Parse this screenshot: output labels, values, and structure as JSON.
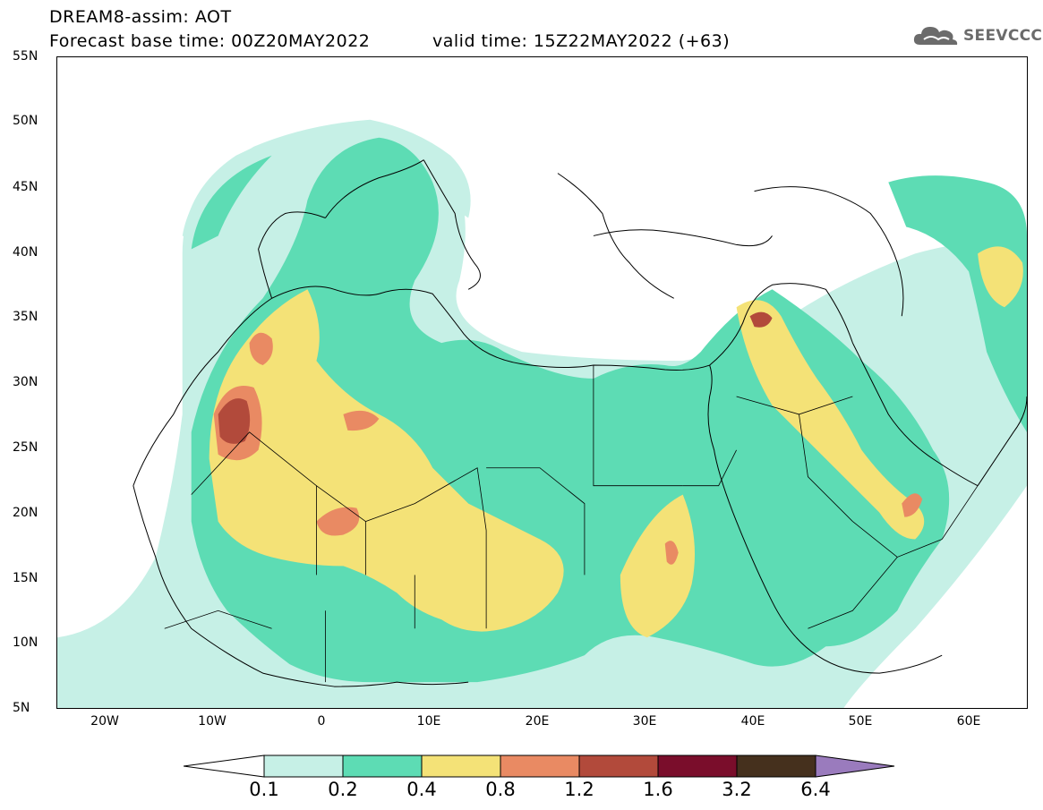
{
  "title": {
    "line1": "DREAM8-assim: AOT",
    "line2": "Forecast base time: 00Z20MAY2022",
    "valid": "valid time: 15Z22MAY2022 (+63)"
  },
  "logo": {
    "text": "SEEVCCC",
    "icon": "cloud-icon"
  },
  "map": {
    "lon_range": [
      -25,
      65
    ],
    "lat_range": [
      5,
      55
    ],
    "lat_labels": [
      "55N",
      "50N",
      "45N",
      "40N",
      "35N",
      "30N",
      "25N",
      "20N",
      "15N",
      "10N",
      "5N"
    ],
    "lon_labels": [
      "20W",
      "10W",
      "0",
      "10E",
      "20E",
      "30E",
      "40E",
      "50E",
      "60E"
    ]
  },
  "legend": {
    "labels": [
      "0.1",
      "0.2",
      "0.4",
      "0.8",
      "1.2",
      "1.6",
      "3.2",
      "6.4"
    ],
    "colors": [
      "#ffffff",
      "#c6f0e6",
      "#5ddcb4",
      "#f4e277",
      "#e98a63",
      "#b24a3b",
      "#7a0d2b",
      "#45301d",
      "#9a7bbd"
    ]
  }
}
